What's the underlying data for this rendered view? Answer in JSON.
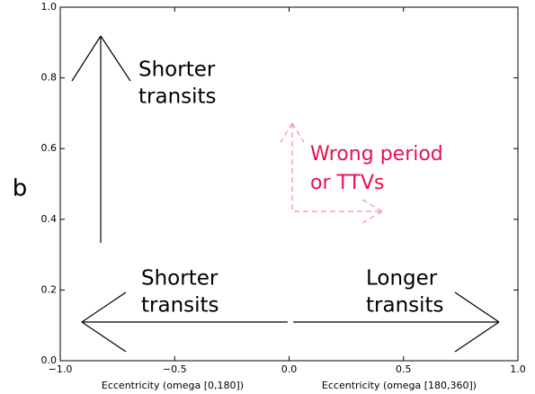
{
  "chart_data": {
    "type": "annotation",
    "xlim": [
      -1,
      1
    ],
    "xticks": [
      {
        "value": -1,
        "label": "−1.0"
      },
      {
        "value": -0.5,
        "label": "−0.5"
      },
      {
        "value": 0,
        "label": "0.0"
      },
      {
        "value": 0.5,
        "label": "0.5"
      },
      {
        "value": 1,
        "label": "1.0"
      }
    ],
    "ylim": [
      0,
      1
    ],
    "yticks": [
      {
        "value": 0,
        "label": "0.0"
      },
      0.2,
      0.4,
      0.6,
      0.8,
      {
        "value": 1,
        "label": "1.0"
      }
    ],
    "ylabel": "b",
    "xlabels": [
      "Eccentricity (omega [0,180])",
      "Eccentricity (omega [180,360])"
    ],
    "annotations": [
      {
        "lines": [
          "Shorter",
          "transits"
        ],
        "color": "#000000"
      },
      {
        "lines": [
          "Wrong period",
          "or TTVs"
        ],
        "color": "#e8104f"
      },
      {
        "lines": [
          "Shorter",
          "transits"
        ],
        "color": "#000000"
      },
      {
        "lines": [
          "Longer",
          "transits"
        ],
        "color": "#000000"
      }
    ]
  }
}
